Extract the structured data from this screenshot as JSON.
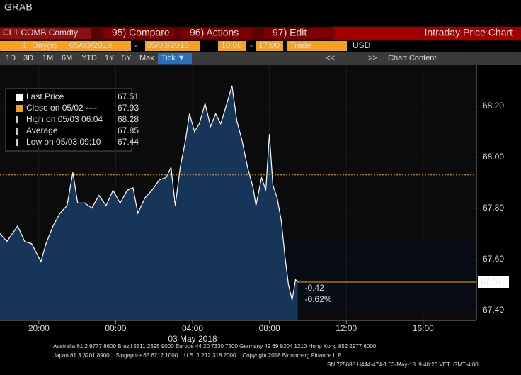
{
  "window": {
    "title": "GRAB"
  },
  "toolbar": {
    "security": "CL1 COMB Comdty",
    "menu": [
      "95) Compare",
      "96) Actions",
      "97) Edit"
    ],
    "page_title": "Intraday Price Chart",
    "range_fields": [
      "1",
      "Day(s)",
      "05/03/2018",
      "-",
      "05/03/2018",
      "18:00",
      "-",
      "17:00",
      "Trade",
      "USD"
    ],
    "periods": [
      "1D",
      "3D",
      "1M",
      "6M",
      "YTD",
      "1Y",
      "5Y",
      "Max",
      "Tick ▼"
    ],
    "nav": [
      "<<",
      ">>",
      "Chart Content"
    ]
  },
  "chart_data": {
    "type": "line",
    "area": true,
    "color": "#ffffff",
    "fill": "#173459",
    "grid": true,
    "x": [
      17.98,
      18.34,
      18.9,
      19.26,
      19.63,
      20.11,
      20.37,
      20.74,
      21.1,
      21.47,
      21.77,
      22.02,
      22.39,
      22.76,
      23.13,
      23.5,
      23.86,
      24.23,
      24.6,
      24.9,
      25.15,
      25.52,
      25.89,
      26.26,
      26.62,
      26.88,
      27.1,
      27.36,
      27.62,
      27.84,
      28.1,
      28.35,
      28.65,
      28.94,
      29.2,
      29.46,
      29.75,
      30.05,
      30.31,
      30.56,
      30.86,
      31.15,
      31.3,
      31.59,
      31.81,
      32.0,
      32.18,
      32.4,
      32.62,
      32.81,
      32.99,
      33.18,
      33.36,
      33.47
    ],
    "values": [
      67.7,
      67.67,
      67.73,
      67.67,
      67.66,
      67.59,
      67.66,
      67.73,
      67.78,
      67.81,
      67.94,
      67.82,
      67.82,
      67.8,
      67.85,
      67.81,
      67.87,
      67.82,
      67.87,
      67.88,
      67.78,
      67.84,
      67.87,
      67.91,
      67.92,
      67.96,
      67.81,
      67.96,
      68.06,
      68.17,
      68.1,
      68.13,
      68.21,
      68.12,
      68.17,
      68.13,
      68.2,
      68.28,
      68.14,
      68.07,
      67.96,
      67.88,
      67.81,
      67.92,
      67.87,
      68.09,
      67.89,
      67.84,
      67.75,
      67.61,
      67.5,
      67.44,
      67.52,
      67.51
    ],
    "xlim": [
      17.98,
      42.77
    ],
    "xticks": [
      {
        "value": 20,
        "label": "20:00"
      },
      {
        "value": 24,
        "label": "00:00"
      },
      {
        "value": 28,
        "label": "04:00"
      },
      {
        "value": 32,
        "label": "08:00"
      },
      {
        "value": 36,
        "label": "12:00"
      },
      {
        "value": 40,
        "label": "16:00"
      }
    ],
    "x_date_label": "03 May 2018",
    "ylim": [
      67.36,
      68.36
    ],
    "yticks": [
      {
        "value": 67.4,
        "label": "67.40"
      },
      {
        "value": 67.6,
        "label": "67.60"
      },
      {
        "value": 67.8,
        "label": "67.80"
      },
      {
        "value": 68.0,
        "label": "68.00"
      },
      {
        "value": 68.2,
        "label": "68.20"
      }
    ],
    "legend_items": [
      {
        "name": "Last Price",
        "value": 67.51,
        "color": "#ffffff"
      },
      {
        "name": "Close on 05/02 ----",
        "value": 67.93,
        "color": "#f7a21b"
      },
      {
        "name": "High on 05/03 06:04",
        "value": 68.28,
        "color": "#cccccc"
      },
      {
        "name": "Average",
        "value": 67.85,
        "color": "#cccccc"
      },
      {
        "name": "Low on 05/03 09:10",
        "value": 67.44,
        "color": "#cccccc"
      }
    ],
    "change": -0.42,
    "change_pct": {
      "value": -0.62,
      "label": "-0.62%"
    },
    "marker_color": "#f7a21b"
  },
  "footer": {
    "lines": [
      "Australia 61 2 9777 8600 Brazil 5511 2395 9000 Europe 44 20 7330 7500 Germany 49 69 9204 1210 Hong Kong 852 2977 6000",
      "Japan 81 3 3201 8900    Singapore 65 6212 1000    U.S. 1 212 318 2000    Copyright 2018 Bloomberg Finance L.P.",
      "SN 725688 H444-474-1 03-May-18  9:40:20 VET  GMT-4:00"
    ]
  }
}
